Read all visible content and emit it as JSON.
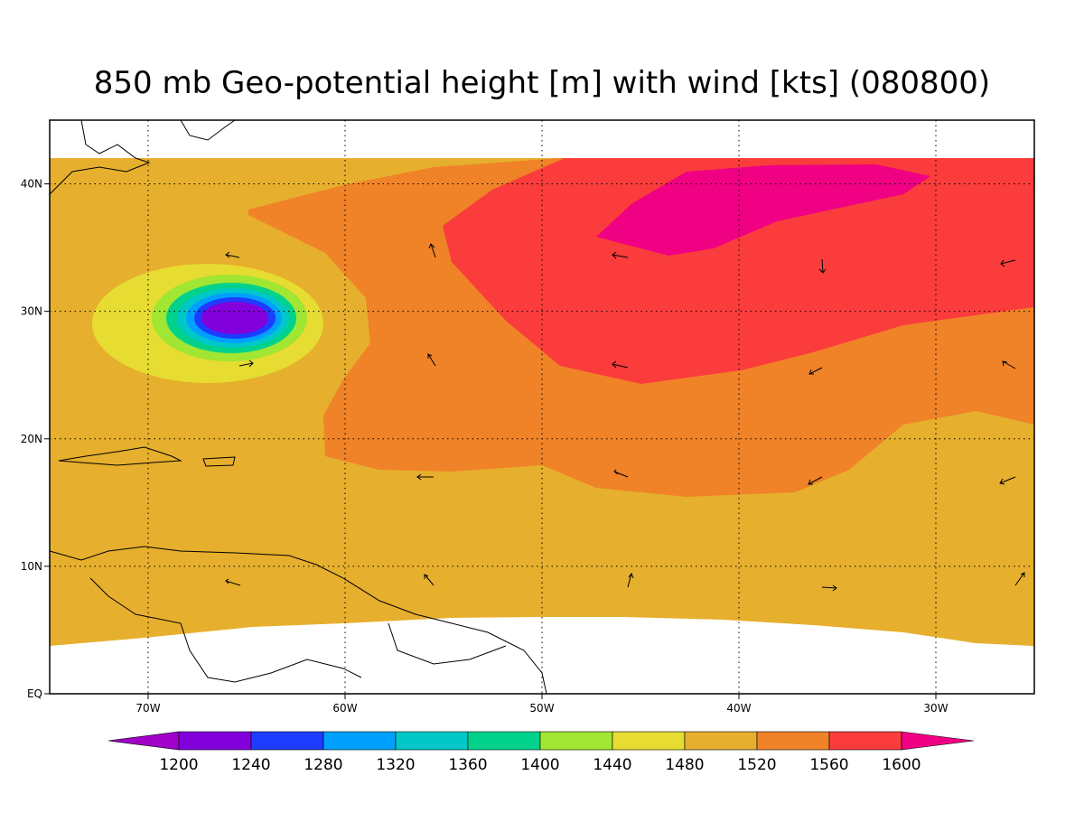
{
  "map": {
    "title": "850 mb Geo-potential height [m] with wind [kts] (080800)",
    "xlim": [
      -75,
      -25
    ],
    "ylim": [
      0,
      45
    ],
    "lon_ticks": [
      {
        "value": -70,
        "label": "70W"
      },
      {
        "value": -60,
        "label": "60W"
      },
      {
        "value": -50,
        "label": "50W"
      },
      {
        "value": -40,
        "label": "40W"
      },
      {
        "value": -30,
        "label": "30W"
      }
    ],
    "lat_ticks": [
      {
        "value": 0,
        "label": "EQ"
      },
      {
        "value": 10,
        "label": "10N"
      },
      {
        "value": 20,
        "label": "20N"
      },
      {
        "value": 30,
        "label": "30N"
      },
      {
        "value": 40,
        "label": "40N"
      }
    ],
    "colorbar": {
      "levels": [
        1200,
        1240,
        1280,
        1320,
        1360,
        1400,
        1440,
        1480,
        1520,
        1560,
        1600
      ],
      "colors": [
        "#a000c8",
        "#8200dc",
        "#1e3cff",
        "#00a0ff",
        "#00c8c8",
        "#00d28c",
        "#a0e632",
        "#e6dc32",
        "#e6af2d",
        "#f08228",
        "#fa3c3c",
        "#f00082"
      ]
    }
  }
}
